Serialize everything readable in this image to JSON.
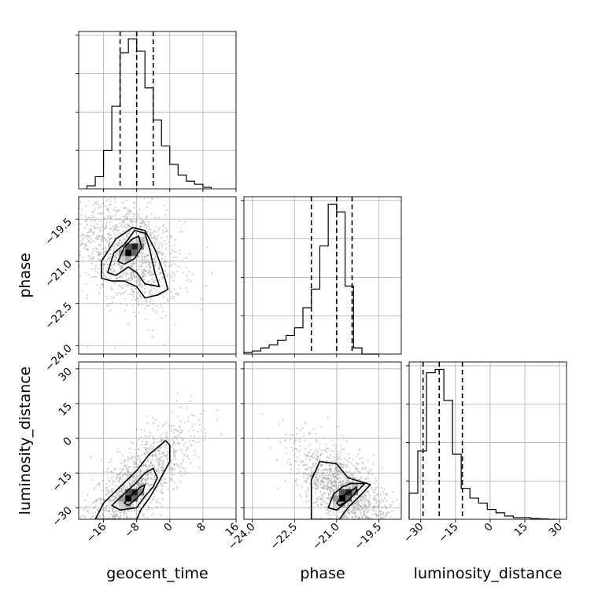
{
  "chart_data": {
    "type": "corner",
    "parameters": [
      {
        "name": "geocent_time",
        "label": "geocent_time",
        "range": [
          -22,
          16
        ],
        "ticks": [
          -16,
          -8,
          0,
          8,
          16
        ],
        "tick_labels": [
          "−16",
          "−8",
          "0",
          "8",
          "16"
        ],
        "quantiles": [
          -12,
          -8,
          -4
        ]
      },
      {
        "name": "phase",
        "label": "phase",
        "range": [
          -24.3,
          -18.7
        ],
        "ticks": [
          -24.0,
          -22.5,
          -21.0,
          -19.5
        ],
        "tick_labels": [
          "−24.0",
          "−22.5",
          "−21.0",
          "−19.5"
        ],
        "quantiles": [
          -21.9,
          -21.0,
          -20.45
        ]
      },
      {
        "name": "luminosity_distance",
        "label": "luminosity_distance",
        "range": [
          -35,
          33
        ],
        "ticks": [
          -30,
          -15,
          0,
          15,
          30
        ],
        "tick_labels": [
          "−30",
          "−15",
          "0",
          "15",
          "30"
        ],
        "quantiles": [
          -29,
          -22,
          -12
        ]
      }
    ],
    "histograms": [
      {
        "param": "geocent_time",
        "bin_edges": [
          -20,
          -18,
          -16,
          -14,
          -12,
          -10,
          -8,
          -6,
          -4,
          -2,
          0,
          2,
          4,
          6,
          8,
          10
        ],
        "counts": [
          2,
          8,
          25,
          54,
          89,
          98,
          90,
          66,
          45,
          28,
          16,
          9,
          5,
          3,
          1
        ]
      },
      {
        "param": "phase",
        "bin_edges": [
          -24.3,
          -24.0,
          -23.7,
          -23.4,
          -23.1,
          -22.8,
          -22.5,
          -22.2,
          -21.9,
          -21.6,
          -21.3,
          -21.0,
          -20.7,
          -20.4,
          -20.1,
          -19.8,
          -19.5
        ],
        "counts": [
          1,
          2,
          4,
          6,
          9,
          12,
          17,
          30,
          42,
          70,
          97,
          92,
          44,
          4,
          0,
          0
        ]
      },
      {
        "param": "luminosity_distance",
        "bin_edges": [
          -35,
          -31.25,
          -27.5,
          -23.75,
          -20,
          -16.25,
          -12.5,
          -8.75,
          -5,
          -1.25,
          2.5,
          6.25,
          10,
          13.75,
          17.5,
          21.25,
          25,
          28.75
        ],
        "counts": [
          16,
          42,
          90,
          92,
          73,
          40,
          19,
          13,
          10,
          6,
          4,
          2,
          1,
          1,
          0.5,
          0.3,
          0
        ]
      }
    ],
    "pairs": [
      {
        "x": "geocent_time",
        "y": "phase",
        "density_peak": [
          -10,
          -20.7
        ],
        "contours": [
          [
            [
              -12.5,
              -21.0
            ],
            [
              -11,
              -20.5
            ],
            [
              -9,
              -20.2
            ],
            [
              -7.5,
              -20.1
            ],
            [
              -6.8,
              -20.5
            ],
            [
              -8.5,
              -20.9
            ],
            [
              -11,
              -21.1
            ]
          ],
          [
            [
              -15,
              -21.4
            ],
            [
              -13.5,
              -20.7
            ],
            [
              -11,
              -20.4
            ],
            [
              -8.5,
              -19.9
            ],
            [
              -6,
              -20.0
            ],
            [
              -4.8,
              -20.6
            ],
            [
              -3.6,
              -21.4
            ],
            [
              -2.5,
              -21.9
            ],
            [
              -6,
              -21.8
            ],
            [
              -8,
              -21.4
            ],
            [
              -10,
              -21.2
            ],
            [
              -13,
              -21.5
            ]
          ],
          [
            [
              -16.5,
              -21.6
            ],
            [
              -16.5,
              -21.0
            ],
            [
              -13,
              -20.2
            ],
            [
              -9,
              -19.8
            ],
            [
              -6,
              -19.9
            ],
            [
              -3.5,
              -20.6
            ],
            [
              -2,
              -21.2
            ],
            [
              -1,
              -21.7
            ],
            [
              -0.5,
              -22.0
            ],
            [
              -3,
              -22.2
            ],
            [
              -6,
              -22.3
            ],
            [
              -8,
              -21.9
            ],
            [
              -11,
              -21.7
            ],
            [
              -14,
              -21.7
            ]
          ]
        ]
      },
      {
        "x": "geocent_time",
        "y": "luminosity_distance",
        "density_peak": [
          -10,
          -26
        ],
        "contours": [
          [
            [
              -11,
              -28
            ],
            [
              -9,
              -24
            ],
            [
              -7,
              -21
            ],
            [
              -6,
              -20
            ],
            [
              -6.5,
              -23
            ],
            [
              -8,
              -26
            ],
            [
              -10,
              -29
            ]
          ],
          [
            [
              -14,
              -29
            ],
            [
              -11,
              -24
            ],
            [
              -8,
              -19
            ],
            [
              -6,
              -15
            ],
            [
              -4,
              -13
            ],
            [
              -3,
              -17
            ],
            [
              -4,
              -21
            ],
            [
              -6,
              -25
            ],
            [
              -8,
              -30
            ],
            [
              -12,
              -31
            ]
          ],
          [
            [
              -18,
              -35
            ],
            [
              -16,
              -28
            ],
            [
              -12,
              -21
            ],
            [
              -8,
              -14
            ],
            [
              -5,
              -7
            ],
            [
              -1,
              -1
            ],
            [
              0,
              -3
            ],
            [
              0,
              -10
            ],
            [
              -1.5,
              -15
            ],
            [
              -3,
              -20
            ],
            [
              -5,
              -26
            ],
            [
              -7,
              -31
            ],
            [
              -8,
              -35
            ]
          ]
        ]
      },
      {
        "x": "phase",
        "y": "luminosity_distance",
        "density_peak": [
          -20.8,
          -26
        ],
        "contours": [
          [
            [
              -21.0,
              -28
            ],
            [
              -20.8,
              -25
            ],
            [
              -20.4,
              -22
            ],
            [
              -20.3,
              -21
            ],
            [
              -20.3,
              -23
            ],
            [
              -20.6,
              -27
            ],
            [
              -20.9,
              -29
            ]
          ],
          [
            [
              -21.3,
              -30
            ],
            [
              -21.1,
              -24
            ],
            [
              -20.8,
              -21
            ],
            [
              -20.5,
              -19.5
            ],
            [
              -20.0,
              -19.5
            ],
            [
              -20.2,
              -22
            ],
            [
              -20.6,
              -27
            ],
            [
              -21.0,
              -31
            ]
          ],
          [
            [
              -21.9,
              -35
            ],
            [
              -21.9,
              -18
            ],
            [
              -21.6,
              -10
            ],
            [
              -21.0,
              -11
            ],
            [
              -20.6,
              -17
            ],
            [
              -19.8,
              -20
            ],
            [
              -20.1,
              -24
            ],
            [
              -20.6,
              -30
            ],
            [
              -20.9,
              -35
            ]
          ]
        ]
      }
    ]
  }
}
